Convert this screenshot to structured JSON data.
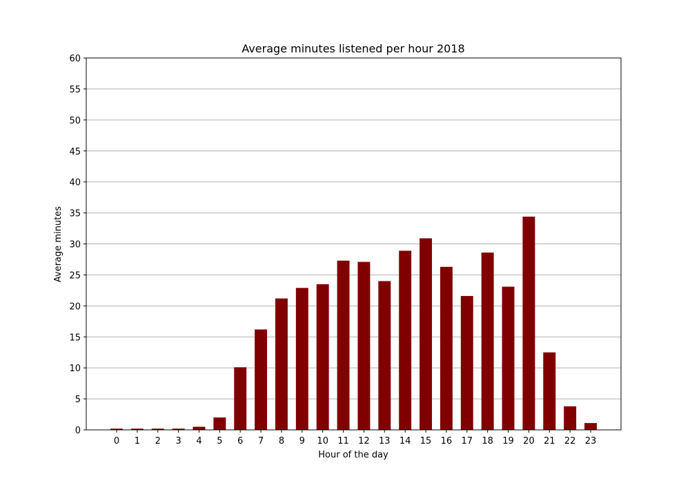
{
  "chart_data": {
    "type": "bar",
    "title": "Average minutes listened per hour 2018",
    "xlabel": "Hour of the day",
    "ylabel": "Average minutes",
    "categories": [
      "0",
      "1",
      "2",
      "3",
      "4",
      "5",
      "6",
      "7",
      "8",
      "9",
      "10",
      "11",
      "12",
      "13",
      "14",
      "15",
      "16",
      "17",
      "18",
      "19",
      "20",
      "21",
      "22",
      "23"
    ],
    "values": [
      0.2,
      0.2,
      0.2,
      0.2,
      0.5,
      2.0,
      10.1,
      16.2,
      21.2,
      22.9,
      23.5,
      27.3,
      27.1,
      24.0,
      28.9,
      30.9,
      26.3,
      21.6,
      28.6,
      23.1,
      34.4,
      12.5,
      3.8,
      1.1
    ],
    "ylim": [
      0,
      60
    ],
    "yticks": [
      0,
      5,
      10,
      15,
      20,
      25,
      30,
      35,
      40,
      45,
      50,
      55,
      60
    ],
    "grid": "y",
    "bar_color": "#800000"
  }
}
